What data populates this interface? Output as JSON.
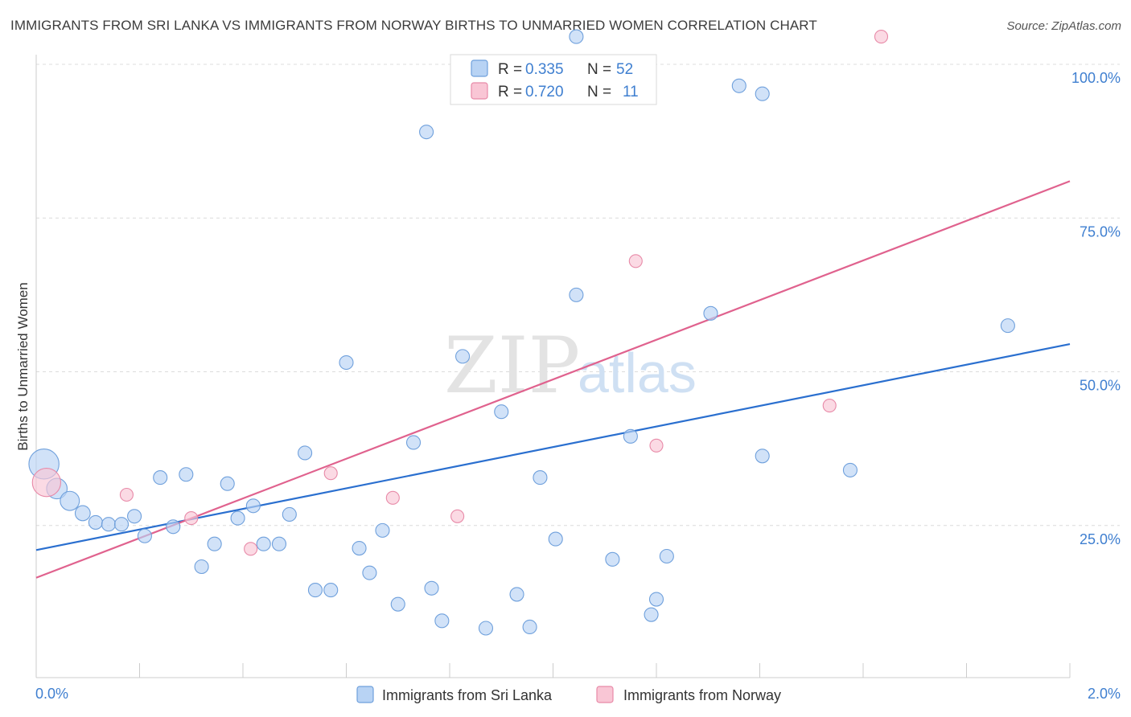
{
  "title": "IMMIGRANTS FROM SRI LANKA VS IMMIGRANTS FROM NORWAY BIRTHS TO UNMARRIED WOMEN CORRELATION CHART",
  "source": "Source: ZipAtlas.com",
  "watermark": {
    "zip": "ZIP",
    "atlas": "atlas"
  },
  "colors": {
    "sri_lanka_fill": "#b8d3f4",
    "sri_lanka_stroke": "#6fa0dc",
    "sri_lanka_line": "#2a6fcf",
    "norway_fill": "#f9c6d5",
    "norway_stroke": "#e88aa8",
    "norway_line": "#e0628e",
    "tick_text": "#3f7fd0",
    "grid": "#dcdcdc"
  },
  "legend": {
    "r_label": "R =",
    "n_label": "N =",
    "rows": [
      {
        "series": "sri_lanka",
        "r": "0.335",
        "n": "52"
      },
      {
        "series": "norway",
        "r": "0.720",
        "n": "11"
      }
    ]
  },
  "chart_data": {
    "type": "scatter",
    "title": "IMMIGRANTS FROM SRI LANKA VS IMMIGRANTS FROM NORWAY BIRTHS TO UNMARRIED WOMEN CORRELATION CHART",
    "xlabel": "",
    "ylabel": "Births to Unmarried Women",
    "xlim": [
      0,
      2.0
    ],
    "ylim": [
      0,
      100
    ],
    "x_tick_labels": [
      "0.0%",
      "2.0%"
    ],
    "y_ticks": [
      25,
      50,
      75,
      100
    ],
    "y_tick_labels": [
      "25.0%",
      "50.0%",
      "75.0%",
      "100.0%"
    ],
    "grid": true,
    "legend_position": "top-center",
    "series": [
      {
        "key": "sri_lanka",
        "name": "Immigrants from Sri Lanka",
        "r": 0.335,
        "n": 52,
        "trend": {
          "x": [
            0,
            2.0
          ],
          "y": [
            21.0,
            54.5
          ]
        },
        "points": [
          {
            "x": 0.015,
            "y": 35.0,
            "s": 2.2
          },
          {
            "x": 0.04,
            "y": 31.0,
            "s": 1.5
          },
          {
            "x": 0.065,
            "y": 29.0,
            "s": 1.4
          },
          {
            "x": 0.09,
            "y": 27.0,
            "s": 1.1
          },
          {
            "x": 0.115,
            "y": 25.5,
            "s": 1
          },
          {
            "x": 0.14,
            "y": 25.2,
            "s": 1
          },
          {
            "x": 0.165,
            "y": 25.2,
            "s": 1
          },
          {
            "x": 0.19,
            "y": 26.5,
            "s": 1
          },
          {
            "x": 0.21,
            "y": 23.3,
            "s": 1
          },
          {
            "x": 0.24,
            "y": 32.8,
            "s": 1
          },
          {
            "x": 0.265,
            "y": 24.8,
            "s": 1
          },
          {
            "x": 0.29,
            "y": 33.3,
            "s": 1
          },
          {
            "x": 0.32,
            "y": 18.3,
            "s": 1
          },
          {
            "x": 0.345,
            "y": 22.0,
            "s": 1
          },
          {
            "x": 0.37,
            "y": 31.8,
            "s": 1
          },
          {
            "x": 0.39,
            "y": 26.2,
            "s": 1
          },
          {
            "x": 0.42,
            "y": 28.2,
            "s": 1
          },
          {
            "x": 0.44,
            "y": 22.0,
            "s": 1
          },
          {
            "x": 0.47,
            "y": 22.0,
            "s": 1
          },
          {
            "x": 0.49,
            "y": 26.8,
            "s": 1
          },
          {
            "x": 0.52,
            "y": 36.8,
            "s": 1
          },
          {
            "x": 0.54,
            "y": 14.5,
            "s": 1
          },
          {
            "x": 0.57,
            "y": 14.5,
            "s": 1
          },
          {
            "x": 0.6,
            "y": 51.5,
            "s": 1
          },
          {
            "x": 0.625,
            "y": 21.3,
            "s": 1
          },
          {
            "x": 0.645,
            "y": 17.3,
            "s": 1
          },
          {
            "x": 0.67,
            "y": 24.2,
            "s": 1
          },
          {
            "x": 0.7,
            "y": 12.2,
            "s": 1
          },
          {
            "x": 0.73,
            "y": 38.5,
            "s": 1
          },
          {
            "x": 0.755,
            "y": 89.0,
            "s": 1
          },
          {
            "x": 0.765,
            "y": 14.8,
            "s": 1
          },
          {
            "x": 0.785,
            "y": 9.5,
            "s": 1
          },
          {
            "x": 0.825,
            "y": 52.5,
            "s": 1
          },
          {
            "x": 0.87,
            "y": 8.3,
            "s": 1
          },
          {
            "x": 0.9,
            "y": 43.5,
            "s": 1
          },
          {
            "x": 0.93,
            "y": 13.8,
            "s": 1
          },
          {
            "x": 0.955,
            "y": 8.5,
            "s": 1
          },
          {
            "x": 0.975,
            "y": 32.8,
            "s": 1
          },
          {
            "x": 1.005,
            "y": 22.8,
            "s": 1
          },
          {
            "x": 1.045,
            "y": 62.5,
            "s": 1
          },
          {
            "x": 1.045,
            "y": 104.5,
            "s": 1
          },
          {
            "x": 1.115,
            "y": 19.5,
            "s": 1
          },
          {
            "x": 1.15,
            "y": 39.5,
            "s": 1
          },
          {
            "x": 1.19,
            "y": 10.5,
            "s": 1
          },
          {
            "x": 1.2,
            "y": 13.0,
            "s": 1
          },
          {
            "x": 1.22,
            "y": 20.0,
            "s": 1
          },
          {
            "x": 1.305,
            "y": 59.5,
            "s": 1
          },
          {
            "x": 1.36,
            "y": 96.5,
            "s": 1
          },
          {
            "x": 1.405,
            "y": 95.2,
            "s": 1
          },
          {
            "x": 1.405,
            "y": 36.3,
            "s": 1
          },
          {
            "x": 1.575,
            "y": 34.0,
            "s": 1
          },
          {
            "x": 1.88,
            "y": 57.5,
            "s": 1
          }
        ]
      },
      {
        "key": "norway",
        "name": "Immigrants from Norway",
        "r": 0.72,
        "n": 11,
        "trend": {
          "x": [
            0,
            2.0
          ],
          "y": [
            16.5,
            81.0
          ]
        },
        "points": [
          {
            "x": 0.02,
            "y": 32.0,
            "s": 2.2
          },
          {
            "x": 0.175,
            "y": 30.0,
            "s": 1
          },
          {
            "x": 0.3,
            "y": 26.2,
            "s": 1
          },
          {
            "x": 0.415,
            "y": 21.2,
            "s": 1
          },
          {
            "x": 0.57,
            "y": 33.5,
            "s": 1
          },
          {
            "x": 0.69,
            "y": 29.5,
            "s": 1
          },
          {
            "x": 0.815,
            "y": 26.5,
            "s": 1
          },
          {
            "x": 1.16,
            "y": 68.0,
            "s": 1
          },
          {
            "x": 1.2,
            "y": 38.0,
            "s": 1
          },
          {
            "x": 1.535,
            "y": 44.5,
            "s": 1
          },
          {
            "x": 1.635,
            "y": 104.5,
            "s": 1
          }
        ]
      }
    ]
  }
}
